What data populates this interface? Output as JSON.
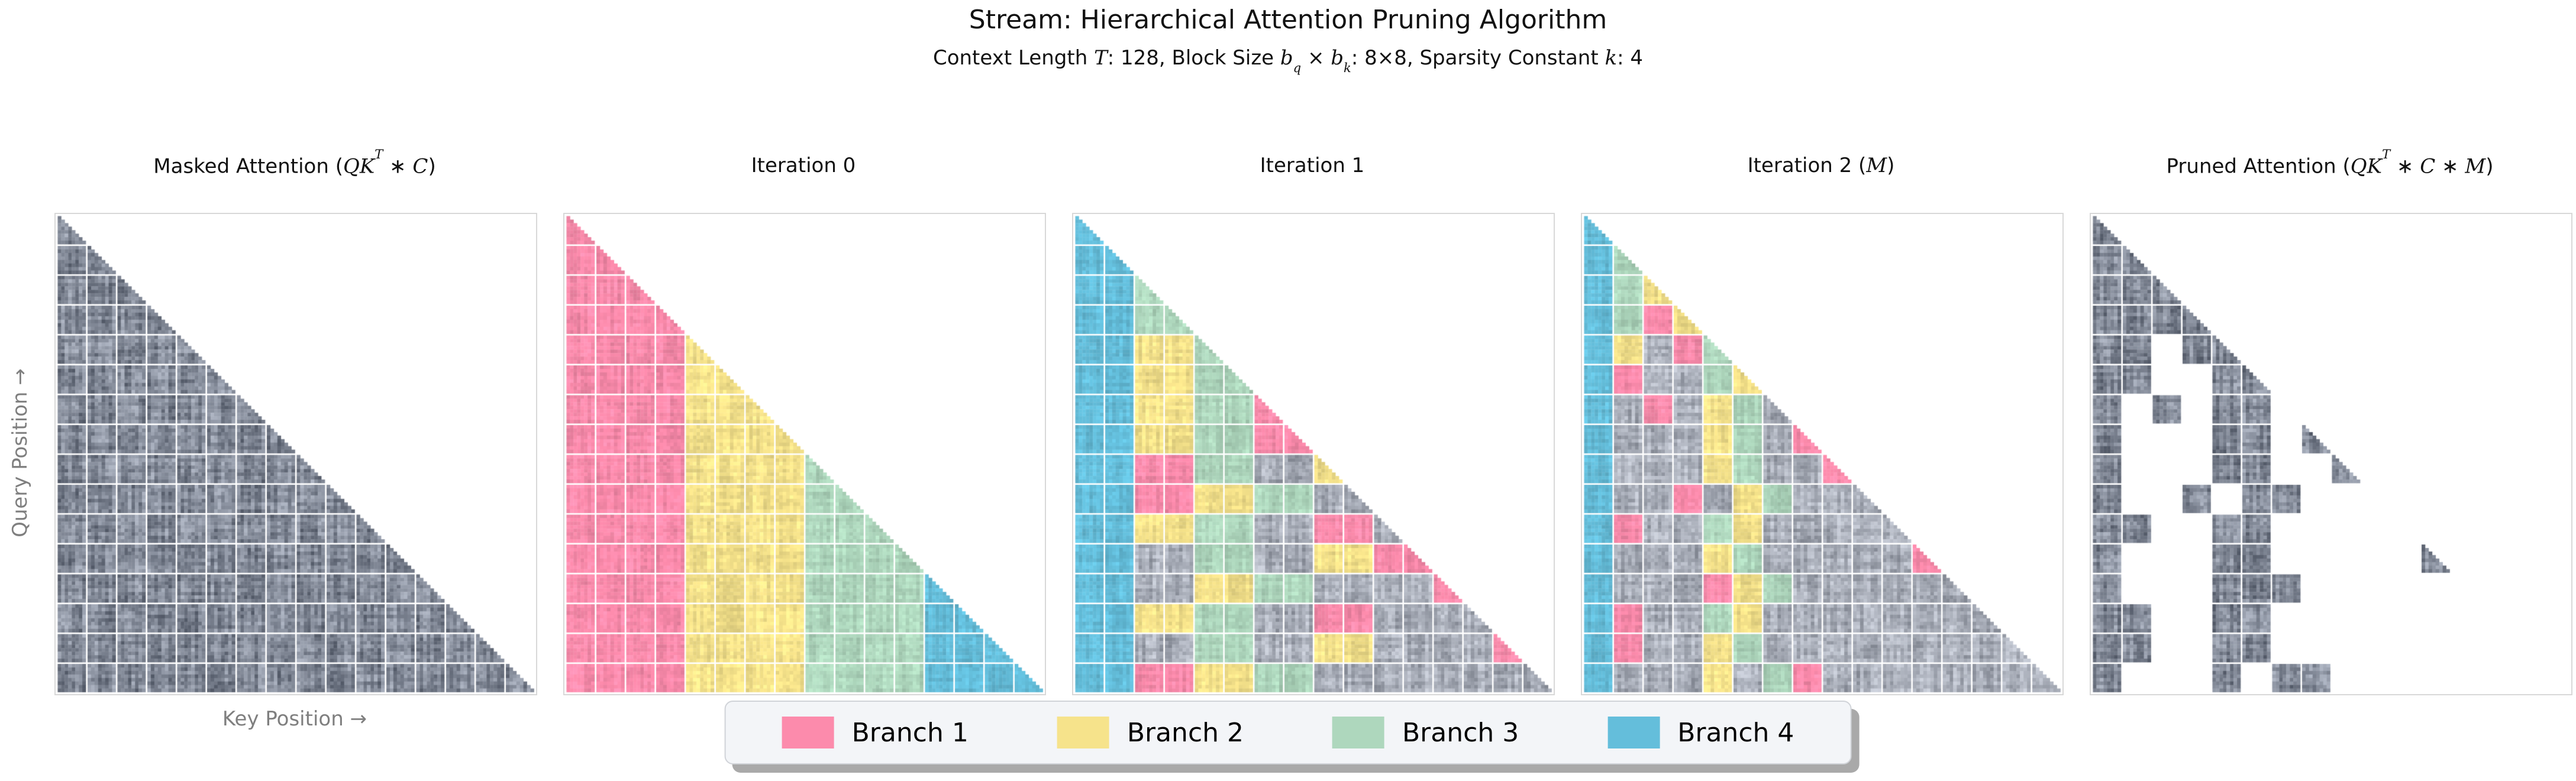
{
  "title": "Stream: Hierarchical Attention Pruning Algorithm",
  "subtitle_segments": [
    {
      "t": "Context Length "
    },
    {
      "t": "T",
      "i": true
    },
    {
      "t": ": 128, Block Size "
    },
    {
      "t": "b",
      "i": true
    },
    {
      "t": "q",
      "i": true,
      "sub": true
    },
    {
      "t": " × "
    },
    {
      "t": "b",
      "i": true
    },
    {
      "t": "k",
      "i": true,
      "sub": true
    },
    {
      "t": ": 8×8, Sparsity Constant "
    },
    {
      "t": "k",
      "i": true
    },
    {
      "t": ": 4"
    }
  ],
  "axis": {
    "y_label": "Query Position →",
    "x_label": "Key Position →"
  },
  "colors": {
    "branch1": "#FC8BAC",
    "branch2": "#F6E38B",
    "branch3": "#AED7BD",
    "branch4": "#64BEDB",
    "masked_gray_tone": "#8c93a1",
    "unselected_gray_tone": "#b2b6bf",
    "panel_border": "#d8d8d8",
    "legend_bg": "#f3f5f8",
    "legend_shadow": "#a9a9a9",
    "axis_label_color": "#7f7f7f"
  },
  "legend": {
    "entries": [
      {
        "label": "Branch 1",
        "color": "#FC8BAC"
      },
      {
        "label": "Branch 2",
        "color": "#F6E38B"
      },
      {
        "label": "Branch 3",
        "color": "#AED7BD"
      },
      {
        "label": "Branch 4",
        "color": "#64BEDB"
      }
    ]
  },
  "chart_data": {
    "type": "heatmap",
    "title": "Stream: Hierarchical Attention Pruning Algorithm",
    "context_length_T": 128,
    "block_size": "8×8",
    "sparsity_constant_k": 4,
    "grid_blocks": 16,
    "cells_per_block": 8,
    "legend_entries": [
      "Branch 1",
      "Branch 2",
      "Branch 3",
      "Branch 4"
    ],
    "cell_legend": "1=Branch1 pink, 2=Branch2 yellow, 3=Branch3 green, 4=Branch4 blue, x=unselected gray noise, g=attention-score gray noise, .=pruned empty; row index = query block (top to bottom), chars = key blocks 0..row; last char of each row is the diagonal staircase block",
    "panels": [
      {
        "title_segments": [
          {
            "t": "Masked Attention ("
          },
          {
            "t": "QK",
            "i": true
          },
          {
            "t": "T",
            "i": true,
            "sup": true
          },
          {
            "t": " ∗ "
          },
          {
            "t": "C",
            "i": true
          },
          {
            "t": ")"
          }
        ],
        "grid": [
          "g",
          "gg",
          "ggg",
          "gggg",
          "ggggg",
          "gggggg",
          "ggggggg",
          "gggggggg",
          "ggggggggg",
          "gggggggggg",
          "ggggggggggg",
          "gggggggggggg",
          "ggggggggggggg",
          "gggggggggggggg",
          "ggggggggggggggg",
          "gggggggggggggggg"
        ]
      },
      {
        "title_segments": [
          {
            "t": "Iteration 0"
          }
        ],
        "grid": [
          "1",
          "11",
          "111",
          "1111",
          "11112",
          "111122",
          "1111222",
          "11112222",
          "111122223",
          "1111222233",
          "11112222333",
          "111122223333",
          "1111222233334",
          "11112222333344",
          "111122223333444",
          "1111222233334444"
        ]
      },
      {
        "title_segments": [
          {
            "t": "Iteration 1"
          }
        ],
        "grid": [
          "4",
          "44",
          "443",
          "4433",
          "44223",
          "442233",
          "4422331",
          "44223311",
          "441133xx2",
          "44112233xx",
          "442233xx11x",
          "44xx33xx2211",
          "44xx2233xxxx1",
          "442233xx11xxxx",
          "44xx33xx22xxxx1",
          "44112233xxxxxxxx"
        ]
      },
      {
        "title_segments": [
          {
            "t": "Iteration 2 ("
          },
          {
            "t": "M",
            "i": true
          },
          {
            "t": ")"
          }
        ],
        "grid": [
          "4",
          "43",
          "432",
          "4312",
          "42x13",
          "41xx32",
          "4x1x23x",
          "4xxx23x1",
          "4xxx23xx1",
          "4xx1x23xxx",
          "41xx32xxxxx",
          "4xxx23xxxxx1",
          "4xxx123xxxxxx",
          "41xx32xxxxxxxx",
          "41xx23xxxxxxxxx",
          "4xxx2x31xxxxxxxx"
        ]
      },
      {
        "title_segments": [
          {
            "t": "Pruned Attention ("
          },
          {
            "t": "QK",
            "i": true
          },
          {
            "t": "T",
            "i": true,
            "sup": true
          },
          {
            "t": " ∗ "
          },
          {
            "t": "C",
            "i": true
          },
          {
            "t": " ∗ "
          },
          {
            "t": "M",
            "i": true
          },
          {
            "t": ")"
          }
        ],
        "grid": [
          "g",
          "gg",
          "ggg",
          "gggg",
          "gg.gg",
          "gg..gg",
          "g.g.gg.",
          "g...gg.g",
          "g...gg..g",
          "g..g.gg...",
          "gg..gg.....",
          "g...gg.....g",
          "g...ggg......",
          "gg..gg........",
          "gg..gg.........",
          "g...g.gg........"
        ]
      }
    ]
  }
}
